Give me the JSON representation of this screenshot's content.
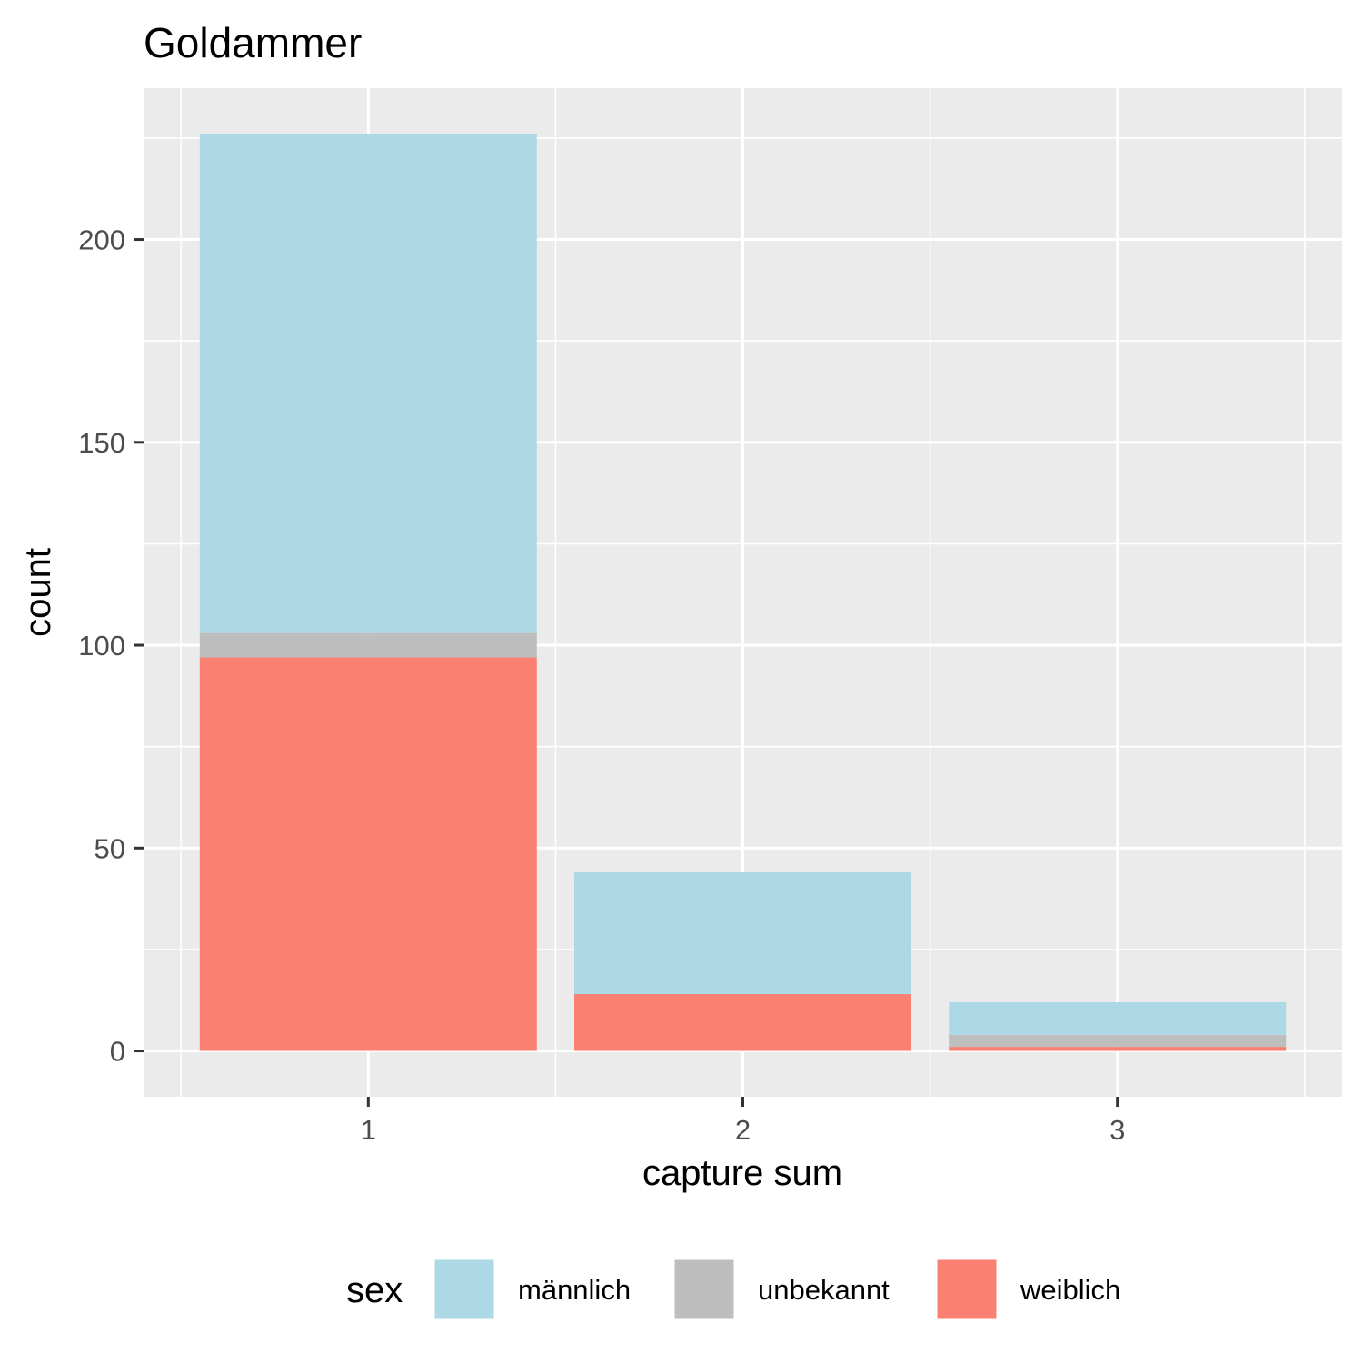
{
  "chart_data": {
    "type": "bar",
    "stacked": true,
    "title": "Goldammer",
    "xlabel": "capture sum",
    "ylabel": "count",
    "categories": [
      "1",
      "2",
      "3"
    ],
    "ylim": [
      -11.3,
      237.3
    ],
    "yticks": [
      0,
      50,
      100,
      150,
      200
    ],
    "grid": true,
    "legend": {
      "title": "sex",
      "position": "bottom"
    },
    "series": [
      {
        "name": "weiblich",
        "color": "#FA8072",
        "values": [
          97,
          14,
          1
        ]
      },
      {
        "name": "unbekannt",
        "color": "#BEBEBE",
        "values": [
          6,
          0,
          3
        ]
      },
      {
        "name": "männlich",
        "color": "#ADD8E6",
        "values": [
          123,
          30,
          8
        ]
      }
    ],
    "legend_order": [
      "männlich",
      "unbekannt",
      "weiblich"
    ]
  }
}
